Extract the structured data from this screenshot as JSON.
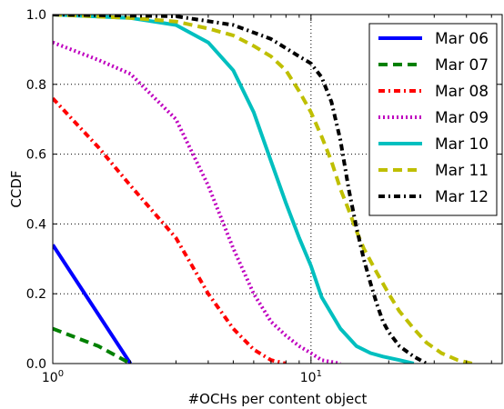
{
  "chart_data": {
    "type": "line",
    "xlabel": "#OCHs per content object",
    "ylabel": "CCDF",
    "xscale": "log",
    "xlim": [
      1,
      55
    ],
    "ylim": [
      0,
      1.0
    ],
    "x_ticks": [
      {
        "value": 1,
        "base": "10",
        "exp": "0"
      },
      {
        "value": 10,
        "base": "10",
        "exp": "1"
      }
    ],
    "y_ticks": [
      "0.0",
      "0.2",
      "0.4",
      "0.6",
      "0.8",
      "1.0"
    ],
    "grid": true,
    "legend_position": "top-right",
    "series": [
      {
        "name": "Mar 06",
        "color": "#0000ff",
        "dash": "solid",
        "points": [
          [
            1,
            0.34
          ],
          [
            2,
            0.0
          ]
        ]
      },
      {
        "name": "Mar 07",
        "color": "#008000",
        "dash": "dashed",
        "points": [
          [
            1,
            0.1
          ],
          [
            1.5,
            0.05
          ],
          [
            2,
            0.0
          ]
        ]
      },
      {
        "name": "Mar 08",
        "color": "#ff0000",
        "dash": "dashdot",
        "points": [
          [
            1,
            0.76
          ],
          [
            1.5,
            0.62
          ],
          [
            2,
            0.51
          ],
          [
            3,
            0.36
          ],
          [
            4,
            0.2
          ],
          [
            5,
            0.1
          ],
          [
            6,
            0.04
          ],
          [
            7,
            0.01
          ],
          [
            8,
            0.0
          ]
        ]
      },
      {
        "name": "Mar 09",
        "color": "#bf00bf",
        "dash": "dotted",
        "points": [
          [
            1,
            0.92
          ],
          [
            1.5,
            0.87
          ],
          [
            2,
            0.83
          ],
          [
            3,
            0.7
          ],
          [
            4,
            0.51
          ],
          [
            5,
            0.33
          ],
          [
            6,
            0.2
          ],
          [
            7,
            0.12
          ],
          [
            8,
            0.08
          ],
          [
            9,
            0.05
          ],
          [
            10,
            0.03
          ],
          [
            11,
            0.01
          ],
          [
            13,
            0.0
          ]
        ]
      },
      {
        "name": "Mar 10",
        "color": "#00bfbf",
        "dash": "solid",
        "points": [
          [
            1,
            1.0
          ],
          [
            2,
            0.99
          ],
          [
            3,
            0.97
          ],
          [
            4,
            0.92
          ],
          [
            5,
            0.84
          ],
          [
            6,
            0.72
          ],
          [
            7,
            0.58
          ],
          [
            8,
            0.46
          ],
          [
            9,
            0.36
          ],
          [
            10,
            0.28
          ],
          [
            11,
            0.19
          ],
          [
            13,
            0.1
          ],
          [
            15,
            0.05
          ],
          [
            17,
            0.03
          ],
          [
            19,
            0.02
          ],
          [
            22,
            0.01
          ],
          [
            25,
            0.0
          ]
        ]
      },
      {
        "name": "Mar 11",
        "color": "#bfbf00",
        "dash": "dashed",
        "points": [
          [
            1,
            1.0
          ],
          [
            2,
            0.99
          ],
          [
            3,
            0.98
          ],
          [
            4,
            0.96
          ],
          [
            5,
            0.94
          ],
          [
            6,
            0.91
          ],
          [
            7,
            0.88
          ],
          [
            8,
            0.84
          ],
          [
            9,
            0.78
          ],
          [
            10,
            0.72
          ],
          [
            11,
            0.65
          ],
          [
            12,
            0.58
          ],
          [
            13,
            0.5
          ],
          [
            14,
            0.44
          ],
          [
            15,
            0.38
          ],
          [
            16,
            0.33
          ],
          [
            18,
            0.26
          ],
          [
            20,
            0.2
          ],
          [
            22,
            0.15
          ],
          [
            25,
            0.1
          ],
          [
            28,
            0.06
          ],
          [
            32,
            0.03
          ],
          [
            37,
            0.01
          ],
          [
            42,
            0.0
          ]
        ]
      },
      {
        "name": "Mar 12",
        "color": "#000000",
        "dash": "dashdot",
        "points": [
          [
            1,
            1.0
          ],
          [
            3,
            0.995
          ],
          [
            5,
            0.97
          ],
          [
            7,
            0.93
          ],
          [
            9,
            0.88
          ],
          [
            10,
            0.86
          ],
          [
            11,
            0.82
          ],
          [
            12,
            0.75
          ],
          [
            13,
            0.64
          ],
          [
            14,
            0.5
          ],
          [
            15,
            0.39
          ],
          [
            16,
            0.3
          ],
          [
            17,
            0.23
          ],
          [
            18,
            0.17
          ],
          [
            19,
            0.12
          ],
          [
            20,
            0.09
          ],
          [
            22,
            0.05
          ],
          [
            25,
            0.02
          ],
          [
            28,
            0.0
          ]
        ]
      }
    ]
  }
}
